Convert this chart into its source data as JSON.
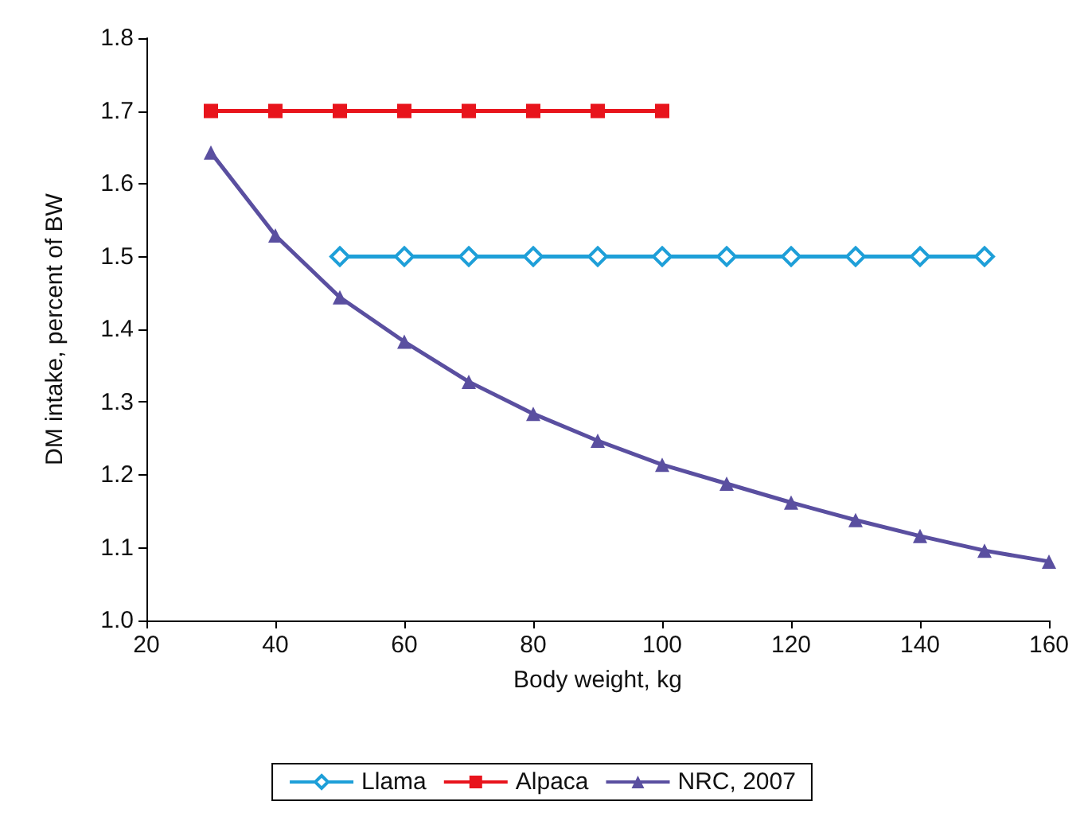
{
  "chart_data": {
    "type": "line",
    "xlabel": "Body weight, kg",
    "ylabel": "DM intake, percent of BW",
    "xlim": [
      20,
      160
    ],
    "xticks": [
      20,
      40,
      60,
      80,
      100,
      120,
      140,
      160
    ],
    "ylim": [
      1.0,
      1.8
    ],
    "yticks": [
      {
        "value": 1.0,
        "label": "1.0"
      },
      {
        "value": 1.1,
        "label": "1.1"
      },
      {
        "value": 1.2,
        "label": "1.2"
      },
      {
        "value": 1.3,
        "label": "1.3"
      },
      {
        "value": 1.4,
        "label": "1.4"
      },
      {
        "value": 1.5,
        "label": "1.5"
      },
      {
        "value": 1.6,
        "label": "1.6"
      },
      {
        "value": 1.7,
        "label": "1.7"
      },
      {
        "value": 1.8,
        "label": "1.8"
      }
    ],
    "grid": false,
    "legend": "bottom",
    "series": [
      {
        "name": "Llama",
        "color": "#1e9fd8",
        "marker": "diamond",
        "x": [
          50,
          60,
          70,
          80,
          90,
          100,
          110,
          120,
          130,
          140,
          150
        ],
        "values": [
          1.5,
          1.5,
          1.5,
          1.5,
          1.5,
          1.5,
          1.5,
          1.5,
          1.5,
          1.5,
          1.5
        ]
      },
      {
        "name": "Alpaca",
        "color": "#e8141c",
        "marker": "square",
        "x": [
          30,
          40,
          50,
          60,
          70,
          80,
          90,
          100
        ],
        "values": [
          1.7,
          1.7,
          1.7,
          1.7,
          1.7,
          1.7,
          1.7,
          1.7
        ]
      },
      {
        "name": "NRC, 2007",
        "color": "#5a4fa0",
        "marker": "triangle",
        "x": [
          30,
          40,
          50,
          60,
          70,
          80,
          90,
          100,
          110,
          120,
          130,
          140,
          150,
          160
        ],
        "values": [
          1.643,
          1.529,
          1.444,
          1.383,
          1.328,
          1.284,
          1.247,
          1.214,
          1.188,
          1.162,
          1.138,
          1.116,
          1.096,
          1.081
        ]
      }
    ]
  }
}
